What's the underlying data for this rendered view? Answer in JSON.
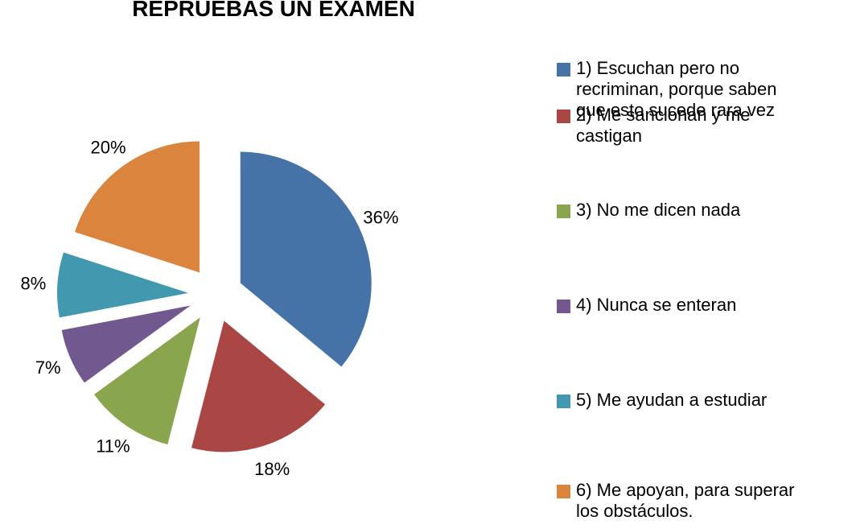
{
  "chart_data": {
    "type": "pie",
    "title": "REPRUEBAS UN EXAMEN",
    "categories": [
      "1) Escuchan pero no recriminan, porque saben que esto sucede rara vez",
      "2) Me sancionan y me castigan",
      "3) No me dicen nada",
      "4) Nunca se enteran",
      "5) Me ayudan a estudiar",
      "6) Me apoyan, para superar los obstáculos."
    ],
    "values": [
      36,
      18,
      11,
      7,
      8,
      20
    ],
    "value_labels": [
      "36%",
      "18%",
      "11%",
      "7%",
      "8%",
      "20%"
    ],
    "colors": [
      "#4572a7",
      "#aa4643",
      "#89a54e",
      "#71588f",
      "#4198af",
      "#db843d"
    ],
    "legend": "right"
  }
}
